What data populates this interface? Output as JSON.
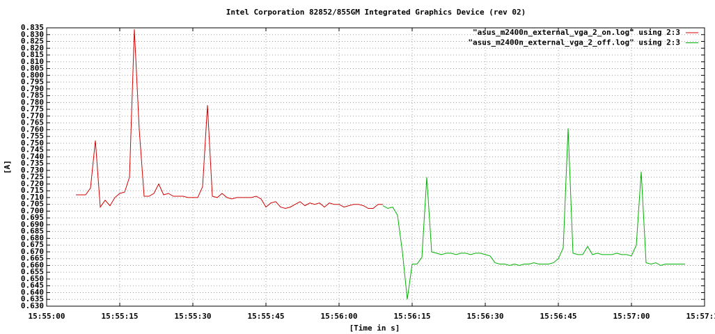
{
  "chart_data": {
    "type": "line",
    "title": "Intel Corporation 82852/855GM Integrated Graphics Device (rev 02)",
    "x_label": "[Time in s]",
    "y_label": "[A]",
    "xlim": [
      "15:55:00",
      "15:57:15"
    ],
    "xticks": [
      "15:55:00",
      "15:55:15",
      "15:55:30",
      "15:55:45",
      "15:56:00",
      "15:56:15",
      "15:56:30",
      "15:56:45",
      "15:57:00",
      "15:57:15"
    ],
    "ylim": [
      0.63,
      0.835
    ],
    "yticks": [
      {
        "value": 0.63,
        "label": "0.630"
      },
      0.635,
      {
        "value": 0.64,
        "label": "0.640"
      },
      0.645,
      {
        "value": 0.65,
        "label": "0.650"
      },
      0.655,
      {
        "value": 0.66,
        "label": "0.660"
      },
      0.665,
      {
        "value": 0.67,
        "label": "0.670"
      },
      0.675,
      {
        "value": 0.68,
        "label": "0.680"
      },
      0.685,
      {
        "value": 0.69,
        "label": "0.690"
      },
      0.695,
      {
        "value": 0.7,
        "label": "0.700"
      },
      0.705,
      {
        "value": 0.71,
        "label": "0.710"
      },
      0.715,
      {
        "value": 0.72,
        "label": "0.720"
      },
      0.725,
      {
        "value": 0.73,
        "label": "0.730"
      },
      0.735,
      {
        "value": 0.74,
        "label": "0.740"
      },
      0.745,
      {
        "value": 0.75,
        "label": "0.750"
      },
      0.755,
      {
        "value": 0.76,
        "label": "0.760"
      },
      0.765,
      {
        "value": 0.77,
        "label": "0.770"
      },
      0.775,
      {
        "value": 0.78,
        "label": "0.780"
      },
      0.785,
      {
        "value": 0.79,
        "label": "0.790"
      },
      0.795,
      {
        "value": 0.8,
        "label": "0.800"
      },
      0.805,
      {
        "value": 0.81,
        "label": "0.810"
      },
      0.815,
      {
        "value": 0.82,
        "label": "0.820"
      },
      0.825,
      {
        "value": 0.83,
        "label": "0.830"
      },
      0.835
    ],
    "grid": true,
    "legend": "top-right",
    "series": [
      {
        "name": "\"asus_m2400n_external_vga_2_on.log\" using 2:3",
        "color": "#d00000",
        "x": [
          "15:55:06",
          "15:55:07",
          "15:55:08",
          "15:55:09",
          "15:55:10",
          "15:55:11",
          "15:55:12",
          "15:55:13",
          "15:55:14",
          "15:55:15",
          "15:55:16",
          "15:55:17",
          "15:55:18",
          "15:55:19",
          "15:55:20",
          "15:55:21",
          "15:55:22",
          "15:55:23",
          "15:55:24",
          "15:55:25",
          "15:55:26",
          "15:55:27",
          "15:55:28",
          "15:55:29",
          "15:55:30",
          "15:55:31",
          "15:55:32",
          "15:55:33",
          "15:55:34",
          "15:55:35",
          "15:55:36",
          "15:55:37",
          "15:55:38",
          "15:55:39",
          "15:55:40",
          "15:55:41",
          "15:55:42",
          "15:55:43",
          "15:55:44",
          "15:55:45",
          "15:55:46",
          "15:55:47",
          "15:55:48",
          "15:55:49",
          "15:55:50",
          "15:55:51",
          "15:55:52",
          "15:55:53",
          "15:55:54",
          "15:55:55",
          "15:55:56",
          "15:55:57",
          "15:55:58",
          "15:55:59",
          "15:56:00",
          "15:56:01",
          "15:56:02",
          "15:56:03",
          "15:56:04",
          "15:56:05",
          "15:56:06",
          "15:56:07",
          "15:56:08",
          "15:56:09"
        ],
        "values": [
          0.712,
          0.712,
          0.712,
          0.717,
          0.752,
          0.703,
          0.708,
          0.704,
          0.71,
          0.713,
          0.714,
          0.725,
          0.834,
          0.76,
          0.711,
          0.711,
          0.713,
          0.72,
          0.712,
          0.713,
          0.711,
          0.711,
          0.711,
          0.71,
          0.71,
          0.71,
          0.718,
          0.778,
          0.711,
          0.71,
          0.713,
          0.71,
          0.709,
          0.71,
          0.71,
          0.71,
          0.71,
          0.711,
          0.709,
          0.703,
          0.706,
          0.707,
          0.703,
          0.702,
          0.703,
          0.705,
          0.707,
          0.704,
          0.706,
          0.705,
          0.706,
          0.703,
          0.706,
          0.705,
          0.705,
          0.703,
          0.704,
          0.705,
          0.705,
          0.704,
          0.702,
          0.702,
          0.705,
          0.705
        ]
      },
      {
        "name": "\"asus_m2400n_external_vga_2_off.log\" using 2:3",
        "color": "#00b000",
        "x": [
          "15:56:09",
          "15:56:10",
          "15:56:11",
          "15:56:12",
          "15:56:13",
          "15:56:14",
          "15:56:15",
          "15:56:16",
          "15:56:17",
          "15:56:18",
          "15:56:19",
          "15:56:20",
          "15:56:21",
          "15:56:22",
          "15:56:23",
          "15:56:24",
          "15:56:25",
          "15:56:26",
          "15:56:27",
          "15:56:28",
          "15:56:29",
          "15:56:30",
          "15:56:31",
          "15:56:32",
          "15:56:33",
          "15:56:34",
          "15:56:35",
          "15:56:36",
          "15:56:37",
          "15:56:38",
          "15:56:39",
          "15:56:40",
          "15:56:41",
          "15:56:42",
          "15:56:43",
          "15:56:44",
          "15:56:45",
          "15:56:46",
          "15:56:47",
          "15:56:48",
          "15:56:49",
          "15:56:50",
          "15:56:51",
          "15:56:52",
          "15:56:53",
          "15:56:54",
          "15:56:55",
          "15:56:56",
          "15:56:57",
          "15:56:58",
          "15:56:59",
          "15:57:00",
          "15:57:01",
          "15:57:02",
          "15:57:03",
          "15:57:04",
          "15:57:05",
          "15:57:06",
          "15:57:07",
          "15:57:08",
          "15:57:09",
          "15:57:10",
          "15:57:11"
        ],
        "values": [
          0.704,
          0.702,
          0.703,
          0.697,
          0.67,
          0.635,
          0.661,
          0.661,
          0.666,
          0.725,
          0.67,
          0.669,
          0.668,
          0.669,
          0.669,
          0.668,
          0.669,
          0.669,
          0.668,
          0.669,
          0.669,
          0.668,
          0.667,
          0.662,
          0.661,
          0.661,
          0.66,
          0.661,
          0.66,
          0.661,
          0.661,
          0.662,
          0.661,
          0.661,
          0.661,
          0.662,
          0.665,
          0.673,
          0.761,
          0.669,
          0.668,
          0.668,
          0.674,
          0.668,
          0.669,
          0.668,
          0.668,
          0.668,
          0.669,
          0.668,
          0.668,
          0.667,
          0.675,
          0.729,
          0.662,
          0.661,
          0.662,
          0.66,
          0.661,
          0.661,
          0.661,
          0.661,
          0.661
        ]
      }
    ]
  }
}
